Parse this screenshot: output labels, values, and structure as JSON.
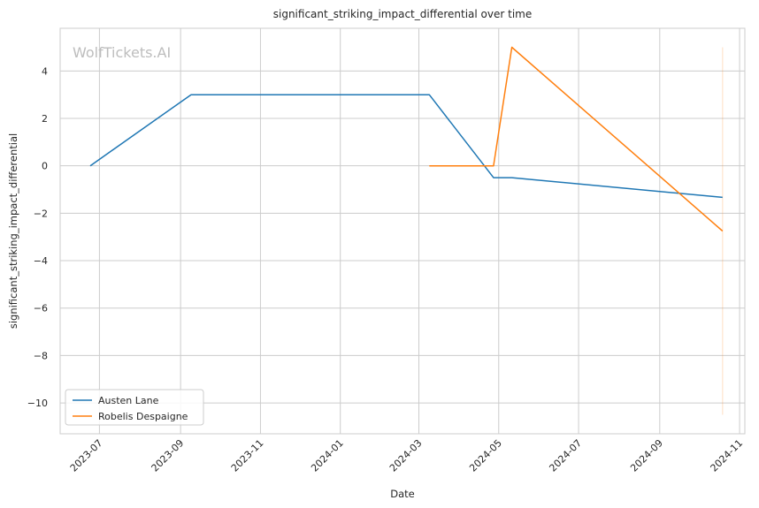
{
  "chart_data": {
    "type": "line",
    "title": "significant_striking_impact_differential over time",
    "xlabel": "Date",
    "ylabel": "significant_striking_impact_differential",
    "watermark": "WolfTickets.AI",
    "xlim": [
      "2023-06-01",
      "2024-11-05"
    ],
    "ylim": [
      -11.3,
      5.8
    ],
    "x_ticks": [
      "2023-07",
      "2023-09",
      "2023-11",
      "2024-01",
      "2024-03",
      "2024-05",
      "2024-07",
      "2024-09",
      "2024-11"
    ],
    "y_ticks": [
      4,
      2,
      0,
      -2,
      -4,
      -6,
      -8,
      -10
    ],
    "grid": true,
    "legend_position": "lower-left",
    "series": [
      {
        "name": "Austen Lane",
        "color": "#1f77b4",
        "points": [
          {
            "x": "2023-06-24",
            "y": 0
          },
          {
            "x": "2023-09-09",
            "y": 3
          },
          {
            "x": "2024-03-09",
            "y": 3
          },
          {
            "x": "2024-04-27",
            "y": -0.5
          },
          {
            "x": "2024-05-11",
            "y": -0.5
          },
          {
            "x": "2024-10-19",
            "y": -1.33
          }
        ]
      },
      {
        "name": "Robelis Despaigne",
        "color": "#ff7f0e",
        "points": [
          {
            "x": "2024-03-09",
            "y": 0
          },
          {
            "x": "2024-04-27",
            "y": 0
          },
          {
            "x": "2024-05-11",
            "y": 5
          },
          {
            "x": "2024-10-19",
            "y": -2.75
          }
        ]
      }
    ],
    "vertical_band": {
      "x": "2024-10-19",
      "y_from": -10.5,
      "y_to": 5,
      "color": "#ff7f0e"
    }
  }
}
